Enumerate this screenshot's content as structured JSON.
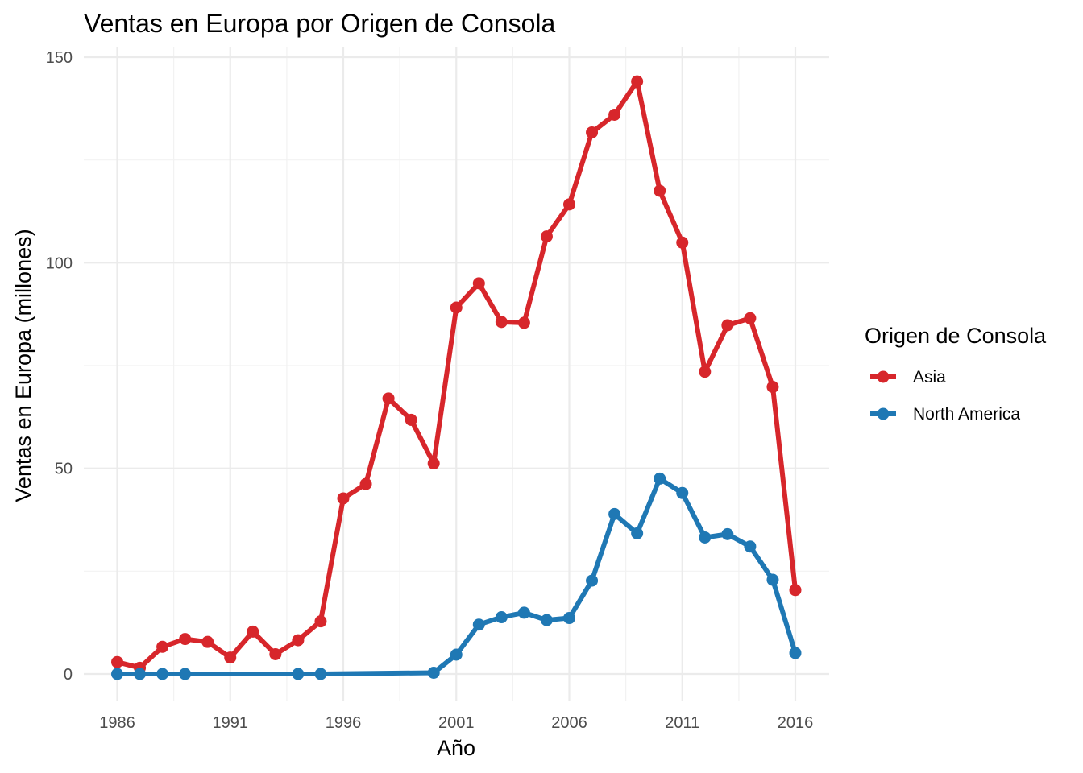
{
  "chart_data": {
    "type": "line",
    "title": "Ventas en Europa por Origen de Consola",
    "xlabel": "Año",
    "ylabel": "Ventas en Europa (millones)",
    "xlim": [
      1986,
      2016
    ],
    "ylim": [
      0,
      150
    ],
    "x_ticks": [
      "1986",
      "1991",
      "1996",
      "2001",
      "2006",
      "2011",
      "2016"
    ],
    "y_ticks": [
      "0",
      "50",
      "100",
      "150"
    ],
    "grid": true,
    "legend": {
      "title": "Origen de Consola",
      "position": "right"
    },
    "series": [
      {
        "name": "Asia",
        "color": "#d7262b",
        "points": [
          [
            1986,
            2.9
          ],
          [
            1987,
            1.5
          ],
          [
            1988,
            6.6
          ],
          [
            1989,
            8.5
          ],
          [
            1990,
            7.8
          ],
          [
            1991,
            4.0
          ],
          [
            1992,
            10.3
          ],
          [
            1993,
            4.8
          ],
          [
            1994,
            8.2
          ],
          [
            1995,
            12.8
          ],
          [
            1996,
            42.7
          ],
          [
            1997,
            46.2
          ],
          [
            1998,
            67.0
          ],
          [
            1999,
            61.8
          ],
          [
            2000,
            51.2
          ],
          [
            2001,
            89.1
          ],
          [
            2002,
            95.0
          ],
          [
            2003,
            85.6
          ],
          [
            2004,
            85.4
          ],
          [
            2005,
            106.4
          ],
          [
            2006,
            114.2
          ],
          [
            2007,
            131.7
          ],
          [
            2008,
            136.0
          ],
          [
            2009,
            144.1
          ],
          [
            2010,
            117.5
          ],
          [
            2011,
            104.9
          ],
          [
            2012,
            73.5
          ],
          [
            2013,
            84.8
          ],
          [
            2014,
            86.5
          ],
          [
            2015,
            69.8
          ],
          [
            2016,
            20.4
          ]
        ]
      },
      {
        "name": "North America",
        "color": "#1f78b4",
        "points": [
          [
            1986,
            0.0
          ],
          [
            1987,
            0.0
          ],
          [
            1988,
            0.0
          ],
          [
            1989,
            0.0
          ],
          [
            1994,
            0.0
          ],
          [
            1995,
            0.0
          ],
          [
            2000,
            0.3
          ],
          [
            2001,
            4.7
          ],
          [
            2002,
            12.0
          ],
          [
            2003,
            13.8
          ],
          [
            2004,
            14.9
          ],
          [
            2005,
            13.1
          ],
          [
            2006,
            13.6
          ],
          [
            2007,
            22.7
          ],
          [
            2008,
            38.9
          ],
          [
            2009,
            34.2
          ],
          [
            2010,
            47.5
          ],
          [
            2011,
            44.0
          ],
          [
            2012,
            33.2
          ],
          [
            2013,
            34.0
          ],
          [
            2014,
            31.0
          ],
          [
            2015,
            22.9
          ],
          [
            2016,
            5.1
          ]
        ]
      }
    ]
  }
}
